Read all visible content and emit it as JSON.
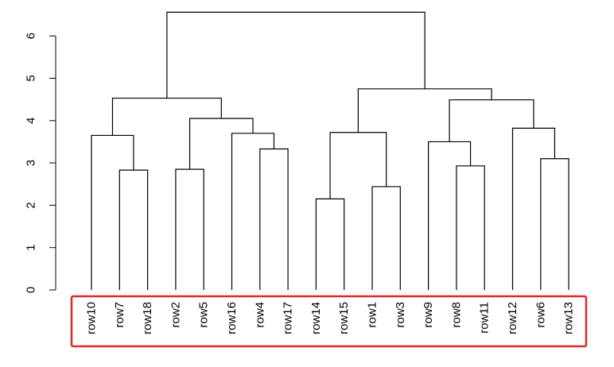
{
  "chart_data": {
    "type": "dendrogram",
    "title": "",
    "xlabel": "",
    "ylabel": "",
    "ylim": [
      0,
      6.6
    ],
    "y_ticks": [
      0,
      1,
      2,
      3,
      4,
      5,
      6
    ],
    "leaf_labels": [
      "row10",
      "row7",
      "row18",
      "row2",
      "row5",
      "row16",
      "row4",
      "row17",
      "row14",
      "row15",
      "row1",
      "row3",
      "row9",
      "row8",
      "row11",
      "row12",
      "row6",
      "row13"
    ],
    "merges": [
      {
        "left": "row7",
        "right": "row18",
        "height": 2.83
      },
      {
        "left": "row10",
        "right": "row7+row18",
        "height": 3.65
      },
      {
        "left": "row2",
        "right": "row5",
        "height": 2.85
      },
      {
        "left": "row4",
        "right": "row17",
        "height": 3.33
      },
      {
        "left": "row16",
        "right": "row4+row17",
        "height": 3.7
      },
      {
        "left": "row2+row5",
        "right": "row16+row4+row17",
        "height": 4.05
      },
      {
        "left": "row10+row7+row18",
        "right": "row2+row5+row16+row4+row17",
        "height": 4.53
      },
      {
        "left": "row14",
        "right": "row15",
        "height": 2.15
      },
      {
        "left": "row1",
        "right": "row3",
        "height": 2.44
      },
      {
        "left": "row14+row15",
        "right": "row1+row3",
        "height": 3.72
      },
      {
        "left": "row8",
        "right": "row11",
        "height": 2.93
      },
      {
        "left": "row9",
        "right": "row8+row11",
        "height": 3.5
      },
      {
        "left": "row6",
        "right": "row13",
        "height": 3.1
      },
      {
        "left": "row12",
        "right": "row6+row13",
        "height": 3.82
      },
      {
        "left": "row9+row8+row11",
        "right": "row12+row6+row13",
        "height": 4.49
      },
      {
        "left": "row14+row15+row1+row3",
        "right": "row9+row8+row11+row12+row6+row13",
        "height": 4.75
      },
      {
        "left": "left-cluster",
        "right": "right-cluster",
        "height": 6.56
      }
    ],
    "grid": false,
    "legend": "none",
    "highlight_color": "#e0282a",
    "line_color": "#000000"
  }
}
